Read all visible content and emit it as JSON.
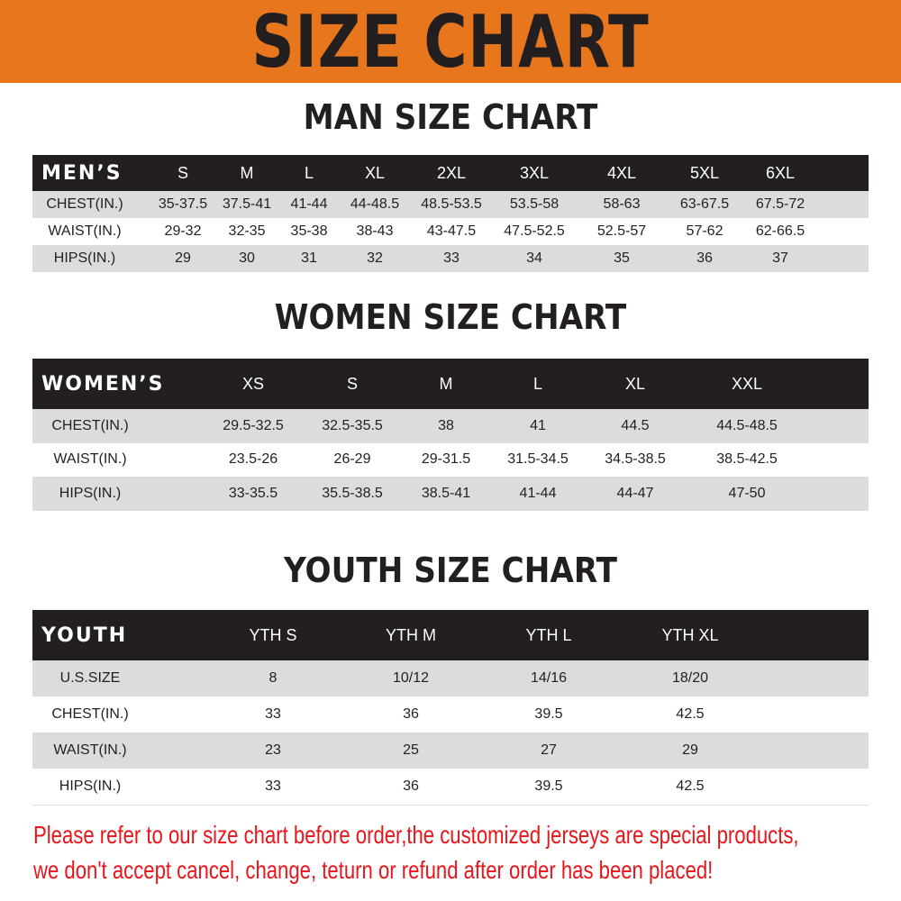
{
  "banner": {
    "title": "SIZE CHART",
    "color": "#e8761c"
  },
  "men": {
    "title": "MAN SIZE CHART",
    "header": [
      "MEN’S",
      "S",
      "M",
      "L",
      "XL",
      "2XL",
      "3XL",
      "4XL",
      "5XL",
      "6XL"
    ],
    "rows": [
      [
        "CHEST(IN.)",
        "35-37.5",
        "37.5-41",
        "41-44",
        "44-48.5",
        "48.5-53.5",
        "53.5-58",
        "58-63",
        "63-67.5",
        "67.5-72"
      ],
      [
        "WAIST(IN.)",
        "29-32",
        "32-35",
        "35-38",
        "38-43",
        "43-47.5",
        "47.5-52.5",
        "52.5-57",
        "57-62",
        "62-66.5"
      ],
      [
        "HIPS(IN.)",
        "29",
        "30",
        "31",
        "32",
        "33",
        "34",
        "35",
        "36",
        "37"
      ]
    ]
  },
  "women": {
    "title": "WOMEN SIZE CHART",
    "header": [
      "WOMEN’S",
      "XS",
      "S",
      "M",
      "L",
      "XL",
      "XXL"
    ],
    "rows": [
      [
        "CHEST(IN.)",
        "29.5-32.5",
        "32.5-35.5",
        "38",
        "41",
        "44.5",
        "44.5-48.5"
      ],
      [
        "WAIST(IN.)",
        "23.5-26",
        "26-29",
        "29-31.5",
        "31.5-34.5",
        "34.5-38.5",
        "38.5-42.5"
      ],
      [
        "HIPS(IN.)",
        "33-35.5",
        "35.5-38.5",
        "38.5-41",
        "41-44",
        "44-47",
        "47-50"
      ]
    ]
  },
  "youth": {
    "title": "YOUTH SIZE CHART",
    "header": [
      "YOUTH",
      "YTH S",
      "YTH M",
      "YTH L",
      "YTH XL"
    ],
    "rows": [
      [
        "U.S.SIZE",
        "8",
        "10/12",
        "14/16",
        "18/20"
      ],
      [
        "CHEST(IN.)",
        "33",
        "36",
        "39.5",
        "42.5"
      ],
      [
        "WAIST(IN.)",
        "23",
        "25",
        "27",
        "29"
      ],
      [
        "HIPS(IN.)",
        "33",
        "36",
        "39.5",
        "42.5"
      ]
    ]
  },
  "notice": {
    "line1": "Please refer to our size chart before order,the customized jerseys are special products,",
    "line2": "we don't accept cancel, change, teturn or refund after order has been placed!",
    "color": "#e8161b"
  }
}
